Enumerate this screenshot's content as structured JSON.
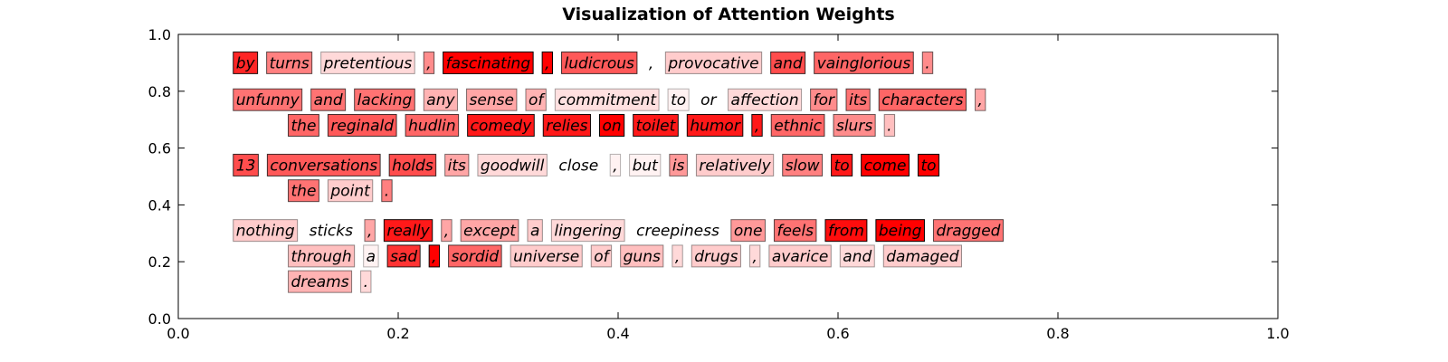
{
  "chart_data": {
    "type": "table",
    "title": "Visualization of Attention Weights",
    "xlabel": "",
    "ylabel": "",
    "xlim": [
      0.0,
      1.0
    ],
    "ylim": [
      0.0,
      1.0
    ],
    "xticks": [
      "0.0",
      "0.2",
      "0.4",
      "0.6",
      "0.8",
      "1.0"
    ],
    "yticks": [
      "0.0",
      "0.2",
      "0.4",
      "0.6",
      "0.8",
      "1.0"
    ],
    "grid": false,
    "highlight_color": "#ff0000",
    "sentences": [
      {
        "lines": [
          {
            "y": 0.9,
            "x": 0.05,
            "tokens": [
              {
                "text": "by",
                "w": 0.85
              },
              {
                "text": "turns",
                "w": 0.5
              },
              {
                "text": "pretentious",
                "w": 0.15
              },
              {
                "text": ",",
                "w": 0.45
              },
              {
                "text": "fascinating",
                "w": 1.0
              },
              {
                "text": ",",
                "w": 1.0
              },
              {
                "text": "ludicrous",
                "w": 0.65
              },
              {
                "text": ",",
                "w": 0.0
              },
              {
                "text": "provocative",
                "w": 0.2
              },
              {
                "text": "and",
                "w": 0.7
              },
              {
                "text": "vainglorious",
                "w": 0.6
              },
              {
                "text": ".",
                "w": 0.45
              }
            ]
          }
        ]
      },
      {
        "lines": [
          {
            "y": 0.77,
            "x": 0.05,
            "tokens": [
              {
                "text": "unfunny",
                "w": 0.55
              },
              {
                "text": "and",
                "w": 0.55
              },
              {
                "text": "lacking",
                "w": 0.55
              },
              {
                "text": "any",
                "w": 0.3
              },
              {
                "text": "sense",
                "w": 0.35
              },
              {
                "text": "of",
                "w": 0.3
              },
              {
                "text": "commitment",
                "w": 0.12
              },
              {
                "text": "to",
                "w": 0.05
              },
              {
                "text": "or",
                "w": 0.0
              },
              {
                "text": "affection",
                "w": 0.15
              },
              {
                "text": "for",
                "w": 0.45
              },
              {
                "text": "its",
                "w": 0.55
              },
              {
                "text": "characters",
                "w": 0.6
              },
              {
                "text": ",",
                "w": 0.35
              }
            ]
          },
          {
            "y": 0.68,
            "x": 0.1,
            "tokens": [
              {
                "text": "the",
                "w": 0.6
              },
              {
                "text": "reginald",
                "w": 0.65
              },
              {
                "text": "hudlin",
                "w": 0.6
              },
              {
                "text": "comedy",
                "w": 0.9
              },
              {
                "text": "relies",
                "w": 0.9
              },
              {
                "text": "on",
                "w": 1.0
              },
              {
                "text": "toilet",
                "w": 0.9
              },
              {
                "text": "humor",
                "w": 0.9
              },
              {
                "text": ",",
                "w": 0.9
              },
              {
                "text": "ethnic",
                "w": 0.6
              },
              {
                "text": "slurs",
                "w": 0.45
              },
              {
                "text": ".",
                "w": 0.25
              }
            ]
          }
        ]
      },
      {
        "lines": [
          {
            "y": 0.54,
            "x": 0.05,
            "tokens": [
              {
                "text": "13",
                "w": 0.7
              },
              {
                "text": "conversations",
                "w": 0.65
              },
              {
                "text": "holds",
                "w": 0.7
              },
              {
                "text": "its",
                "w": 0.35
              },
              {
                "text": "goodwill",
                "w": 0.15
              },
              {
                "text": "close",
                "w": 0.0
              },
              {
                "text": ",",
                "w": 0.05
              },
              {
                "text": "but",
                "w": 0.05
              },
              {
                "text": "is",
                "w": 0.4
              },
              {
                "text": "relatively",
                "w": 0.2
              },
              {
                "text": "slow",
                "w": 0.5
              },
              {
                "text": "to",
                "w": 0.9
              },
              {
                "text": "come",
                "w": 1.0
              },
              {
                "text": "to",
                "w": 1.0
              }
            ]
          },
          {
            "y": 0.45,
            "x": 0.1,
            "tokens": [
              {
                "text": "the",
                "w": 0.55
              },
              {
                "text": "point",
                "w": 0.2
              },
              {
                "text": ".",
                "w": 0.5
              }
            ]
          }
        ]
      },
      {
        "lines": [
          {
            "y": 0.31,
            "x": 0.05,
            "tokens": [
              {
                "text": "nothing",
                "w": 0.2
              },
              {
                "text": "sticks",
                "w": 0.0
              },
              {
                "text": ",",
                "w": 0.35
              },
              {
                "text": "really",
                "w": 0.9
              },
              {
                "text": ",",
                "w": 0.35
              },
              {
                "text": "except",
                "w": 0.35
              },
              {
                "text": "a",
                "w": 0.2
              },
              {
                "text": "lingering",
                "w": 0.15
              },
              {
                "text": "creepiness",
                "w": 0.0
              },
              {
                "text": "one",
                "w": 0.4
              },
              {
                "text": "feels",
                "w": 0.55
              },
              {
                "text": "from",
                "w": 0.95
              },
              {
                "text": "being",
                "w": 1.0
              },
              {
                "text": "dragged",
                "w": 0.55
              }
            ]
          },
          {
            "y": 0.22,
            "x": 0.1,
            "tokens": [
              {
                "text": "through",
                "w": 0.25
              },
              {
                "text": "a",
                "w": 0.05
              },
              {
                "text": "sad",
                "w": 0.8
              },
              {
                "text": ",",
                "w": 1.0
              },
              {
                "text": "sordid",
                "w": 0.6
              },
              {
                "text": "universe",
                "w": 0.2
              },
              {
                "text": "of",
                "w": 0.2
              },
              {
                "text": "guns",
                "w": 0.25
              },
              {
                "text": ",",
                "w": 0.15
              },
              {
                "text": "drugs",
                "w": 0.2
              },
              {
                "text": ",",
                "w": 0.15
              },
              {
                "text": "avarice",
                "w": 0.2
              },
              {
                "text": "and",
                "w": 0.15
              },
              {
                "text": "damaged",
                "w": 0.2
              }
            ]
          },
          {
            "y": 0.13,
            "x": 0.1,
            "tokens": [
              {
                "text": "dreams",
                "w": 0.3
              },
              {
                "text": ".",
                "w": 0.15
              }
            ]
          }
        ]
      }
    ]
  }
}
